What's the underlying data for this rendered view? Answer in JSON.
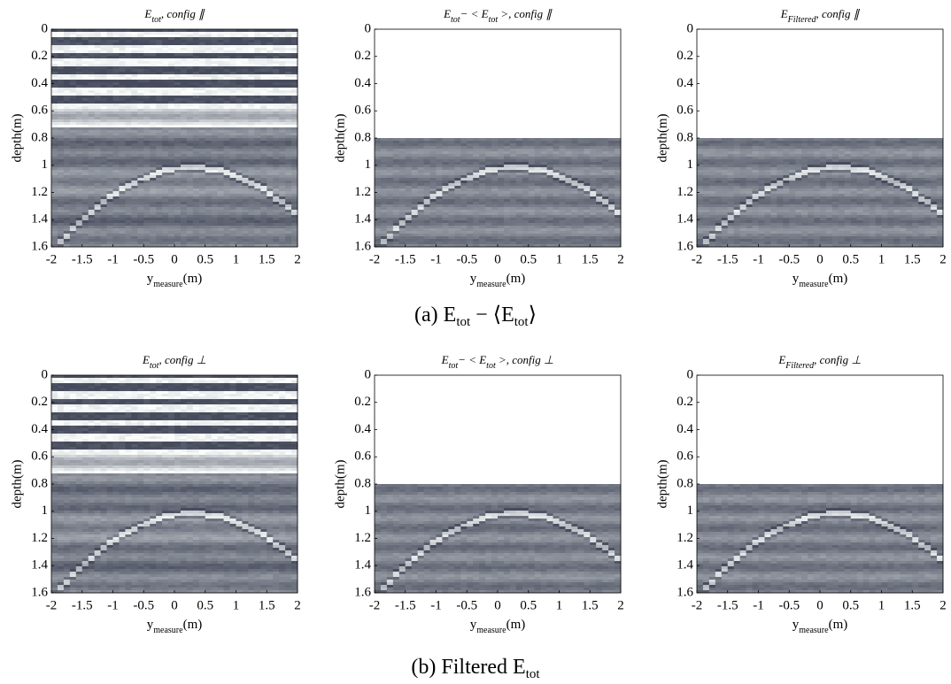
{
  "chart_data": [
    {
      "type": "image",
      "title": [
        "E",
        "tot",
        ", config ∥"
      ],
      "xlabel": [
        "y",
        "measure",
        "(m)"
      ],
      "ylabel": "depth(m)",
      "xlim": [
        -2,
        2
      ],
      "ylim": [
        0,
        1.6
      ],
      "image_ylim": [
        0,
        1.6
      ],
      "xticks": [
        -2,
        -1.5,
        -1,
        -0.5,
        0,
        0.5,
        1,
        1.5,
        2
      ],
      "yticks": [
        0,
        0.2,
        0.4,
        0.6,
        0.8,
        1,
        1.2,
        1.4,
        1.6
      ]
    },
    {
      "type": "image",
      "title": [
        "E",
        "tot",
        "− < E",
        "tot",
        " >, config ∥"
      ],
      "xlabel": [
        "y",
        "measure",
        "(m)"
      ],
      "ylabel": "depth(m)",
      "xlim": [
        -2,
        2
      ],
      "ylim": [
        0,
        1.6
      ],
      "image_ylim": [
        0.8,
        1.6
      ],
      "xticks": [
        -2,
        -1.5,
        -1,
        -0.5,
        0,
        0.5,
        1,
        1.5,
        2
      ],
      "yticks": [
        0,
        0.2,
        0.4,
        0.6,
        0.8,
        1,
        1.2,
        1.4,
        1.6
      ]
    },
    {
      "type": "image",
      "title": [
        "E",
        "Filtered",
        ", config ∥"
      ],
      "xlabel": [
        "y",
        "measure",
        "(m)"
      ],
      "ylabel": "depth(m)",
      "xlim": [
        -2,
        2
      ],
      "ylim": [
        0,
        1.6
      ],
      "image_ylim": [
        0.8,
        1.6
      ],
      "xticks": [
        -2,
        -1.5,
        -1,
        -0.5,
        0,
        0.5,
        1,
        1.5,
        2
      ],
      "yticks": [
        0,
        0.2,
        0.4,
        0.6,
        0.8,
        1,
        1.2,
        1.4,
        1.6
      ]
    },
    {
      "type": "image",
      "title": [
        "E",
        "tot",
        ", config ⊥"
      ],
      "xlabel": [
        "y",
        "measure",
        "(m)"
      ],
      "ylabel": "depth(m)",
      "xlim": [
        -2,
        2
      ],
      "ylim": [
        0,
        1.6
      ],
      "image_ylim": [
        0,
        1.6
      ],
      "xticks": [
        -2,
        -1.5,
        -1,
        -0.5,
        0,
        0.5,
        1,
        1.5,
        2
      ],
      "yticks": [
        0,
        0.2,
        0.4,
        0.6,
        0.8,
        1,
        1.2,
        1.4,
        1.6
      ]
    },
    {
      "type": "image",
      "title": [
        "E",
        "tot",
        "− < E",
        "tot",
        " >, config ⊥"
      ],
      "xlabel": [
        "y",
        "measure",
        "(m)"
      ],
      "ylabel": "depth(m)",
      "xlim": [
        -2,
        2
      ],
      "ylim": [
        0,
        1.6
      ],
      "image_ylim": [
        0.8,
        1.6
      ],
      "xticks": [
        -2,
        -1.5,
        -1,
        -0.5,
        0,
        0.5,
        1,
        1.5,
        2
      ],
      "yticks": [
        0,
        0.2,
        0.4,
        0.6,
        0.8,
        1,
        1.2,
        1.4,
        1.6
      ]
    },
    {
      "type": "image",
      "title": [
        "E",
        "Filtered",
        ", config ⊥"
      ],
      "xlabel": [
        "y",
        "measure",
        "(m)"
      ],
      "ylabel": "depth(m)",
      "xlim": [
        -2,
        2
      ],
      "ylim": [
        0,
        1.6
      ],
      "image_ylim": [
        0.8,
        1.6
      ],
      "xticks": [
        -2,
        -1.5,
        -1,
        -0.5,
        0,
        0.5,
        1,
        1.5,
        2
      ],
      "yticks": [
        0,
        0.2,
        0.4,
        0.6,
        0.8,
        1,
        1.2,
        1.4,
        1.6
      ]
    }
  ],
  "captions": [
    [
      "(a) E",
      "tot",
      " − ⟨E",
      "tot",
      "⟩"
    ],
    [
      "(b)  Filtered E",
      "tot"
    ]
  ]
}
